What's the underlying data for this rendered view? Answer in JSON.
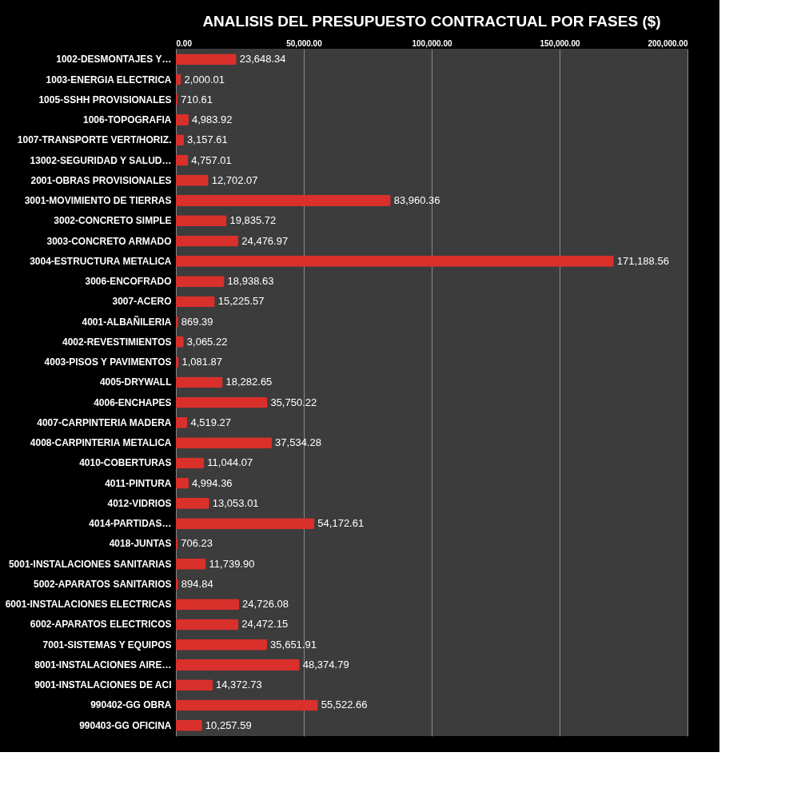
{
  "chart_data": {
    "type": "bar",
    "orientation": "horizontal",
    "title": "ANALISIS DEL PRESUPUESTO CONTRACTUAL POR FASES ($)",
    "categories": [
      "1002-DESMONTAJES Y…",
      "1003-ENERGIA ELECTRICA",
      "1005-SSHH PROVISIONALES",
      "1006-TOPOGRAFIA",
      "1007-TRANSPORTE VERT/HORIZ.",
      "13002-SEGURIDAD Y SALUD…",
      "2001-OBRAS PROVISIONALES",
      "3001-MOVIMIENTO DE TIERRAS",
      "3002-CONCRETO SIMPLE",
      "3003-CONCRETO ARMADO",
      "3004-ESTRUCTURA METALICA",
      "3006-ENCOFRADO",
      "3007-ACERO",
      "4001-ALBAÑILERIA",
      "4002-REVESTIMIENTOS",
      "4003-PISOS Y PAVIMENTOS",
      "4005-DRYWALL",
      "4006-ENCHAPES",
      "4007-CARPINTERIA MADERA",
      "4008-CARPINTERIA METALICA",
      "4010-COBERTURAS",
      "4011-PINTURA",
      "4012-VIDRIOS",
      "4014-PARTIDAS…",
      "4018-JUNTAS",
      "5001-INSTALACIONES SANITARIAS",
      "5002-APARATOS SANITARIOS",
      "6001-INSTALACIONES ELECTRICAS",
      "6002-APARATOS ELECTRICOS",
      "7001-SISTEMAS Y EQUIPOS",
      "8001-INSTALACIONES AIRE…",
      "9001-INSTALACIONES DE ACI",
      "990402-GG OBRA",
      "990403-GG OFICINA"
    ],
    "values": [
      23648.34,
      2000.01,
      710.61,
      4983.92,
      3157.61,
      4757.01,
      12702.07,
      83960.36,
      19835.72,
      24476.97,
      171188.56,
      18938.63,
      15225.57,
      869.39,
      3065.22,
      1081.87,
      18282.65,
      35750.22,
      4519.27,
      37534.28,
      11044.07,
      4994.36,
      13053.01,
      54172.61,
      706.23,
      11739.9,
      894.84,
      24726.08,
      24472.15,
      35651.91,
      48374.79,
      14372.73,
      55522.66,
      10257.59
    ],
    "value_labels": [
      "23,648.34",
      "2,000.01",
      "710.61",
      "4,983.92",
      "3,157.61",
      "4,757.01",
      "12,702.07",
      "83,960.36",
      "19,835.72",
      "24,476.97",
      "171,188.56",
      "18,938.63",
      "15,225.57",
      "869.39",
      "3,065.22",
      "1,081.87",
      "18,282.65",
      "35,750.22",
      "4,519.27",
      "37,534.28",
      "11,044.07",
      "4,994.36",
      "13,053.01",
      "54,172.61",
      "706.23",
      "11,739.90",
      "894.84",
      "24,726.08",
      "24,472.15",
      "35,651.91",
      "48,374.79",
      "14,372.73",
      "55,522.66",
      "10,257.59"
    ],
    "color": "#d9302c",
    "xlim": [
      0,
      200000
    ],
    "xticks": [
      {
        "value": 0,
        "label": "0.00"
      },
      {
        "value": 50000,
        "label": "50,000.00"
      },
      {
        "value": 100000,
        "label": "100,000.00"
      },
      {
        "value": 150000,
        "label": "150,000.00"
      },
      {
        "value": 200000,
        "label": "200,000.00"
      }
    ],
    "grid": "x"
  }
}
